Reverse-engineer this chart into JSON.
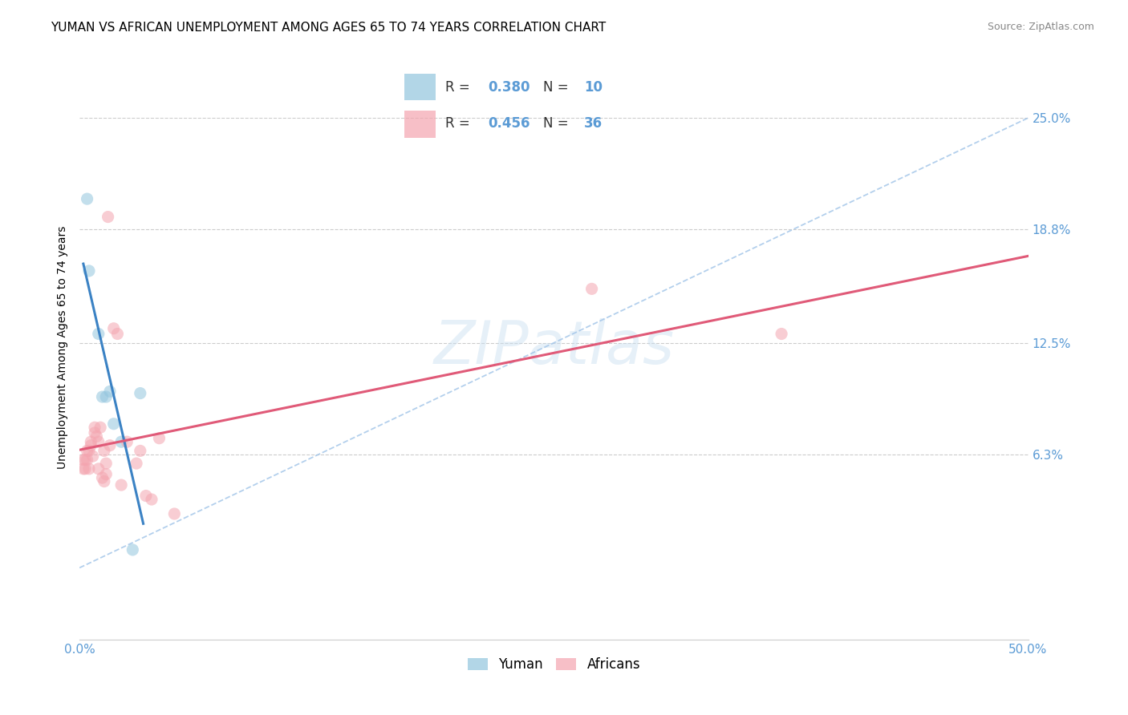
{
  "title": "YUMAN VS AFRICAN UNEMPLOYMENT AMONG AGES 65 TO 74 YEARS CORRELATION CHART",
  "source": "Source: ZipAtlas.com",
  "ylabel": "Unemployment Among Ages 65 to 74 years",
  "ytick_labels": [
    "25.0%",
    "18.8%",
    "12.5%",
    "6.3%"
  ],
  "ytick_values": [
    0.25,
    0.188,
    0.125,
    0.063
  ],
  "xlim": [
    0.0,
    0.5
  ],
  "ylim": [
    -0.04,
    0.285
  ],
  "watermark": "ZIPatlas",
  "yuman_points": [
    [
      0.004,
      0.205
    ],
    [
      0.005,
      0.165
    ],
    [
      0.01,
      0.13
    ],
    [
      0.012,
      0.095
    ],
    [
      0.014,
      0.095
    ],
    [
      0.016,
      0.098
    ],
    [
      0.018,
      0.08
    ],
    [
      0.022,
      0.07
    ],
    [
      0.028,
      0.01
    ],
    [
      0.032,
      0.097
    ]
  ],
  "yuman_R": 0.38,
  "yuman_N": 10,
  "yuman_color": "#92C5DE",
  "yuman_line_color": "#3b82c4",
  "african_points": [
    [
      0.002,
      0.06
    ],
    [
      0.002,
      0.055
    ],
    [
      0.003,
      0.06
    ],
    [
      0.003,
      0.055
    ],
    [
      0.004,
      0.065
    ],
    [
      0.004,
      0.06
    ],
    [
      0.005,
      0.065
    ],
    [
      0.005,
      0.055
    ],
    [
      0.006,
      0.07
    ],
    [
      0.006,
      0.068
    ],
    [
      0.007,
      0.062
    ],
    [
      0.008,
      0.075
    ],
    [
      0.008,
      0.078
    ],
    [
      0.009,
      0.073
    ],
    [
      0.01,
      0.07
    ],
    [
      0.01,
      0.055
    ],
    [
      0.011,
      0.078
    ],
    [
      0.012,
      0.05
    ],
    [
      0.013,
      0.065
    ],
    [
      0.013,
      0.048
    ],
    [
      0.014,
      0.058
    ],
    [
      0.014,
      0.052
    ],
    [
      0.015,
      0.195
    ],
    [
      0.016,
      0.068
    ],
    [
      0.018,
      0.133
    ],
    [
      0.02,
      0.13
    ],
    [
      0.022,
      0.046
    ],
    [
      0.025,
      0.07
    ],
    [
      0.03,
      0.058
    ],
    [
      0.032,
      0.065
    ],
    [
      0.035,
      0.04
    ],
    [
      0.038,
      0.038
    ],
    [
      0.042,
      0.072
    ],
    [
      0.05,
      0.03
    ],
    [
      0.27,
      0.155
    ],
    [
      0.37,
      0.13
    ]
  ],
  "african_R": 0.456,
  "african_N": 36,
  "african_color": "#F4A5B0",
  "african_line_color": "#e05a78",
  "title_fontsize": 11,
  "label_fontsize": 10,
  "tick_fontsize": 11,
  "source_fontsize": 9,
  "marker_size": 120,
  "marker_alpha": 0.55,
  "grid_color": "#cccccc",
  "background_color": "#ffffff",
  "tick_color": "#5b9bd5",
  "legend_border_color": "#cccccc",
  "dashed_line_color": "#a0c4e8"
}
